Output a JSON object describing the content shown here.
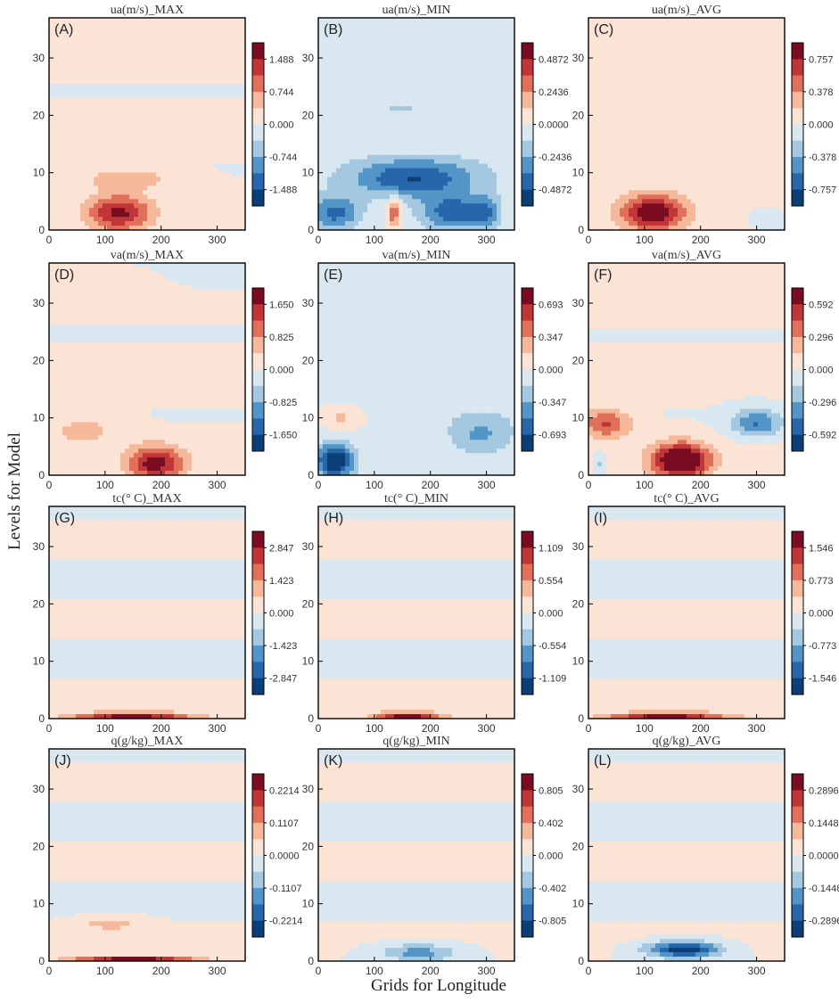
{
  "figure": {
    "ylabel": "Levels for Model",
    "xlabel": "Grids for Longitude"
  },
  "palette": {
    "levels": [
      "#0c3f75",
      "#2766aa",
      "#5495c7",
      "#a4c8e0",
      "#d9e7f1",
      "#fbe3d5",
      "#f6b89a",
      "#e1705a",
      "#c03638",
      "#7a0c22"
    ]
  },
  "chart_data": [
    {
      "type": "heatmap",
      "letter": "(A)",
      "title": "ua(m/s)_MAX",
      "xlim": [
        0,
        350
      ],
      "ylim": [
        0,
        37
      ],
      "xticks": [
        "0",
        "100",
        "200",
        "300"
      ],
      "yticks": [
        "0",
        "10",
        "20",
        "30"
      ],
      "colorbar": [
        "1.488",
        "0.744",
        "0.000",
        "-0.744",
        "-1.488"
      ],
      "vmax": 1.86,
      "bg": 0.05,
      "blobs": [
        {
          "x": 140,
          "y": 9,
          "sx": 80,
          "sy": 1.8,
          "a": 0.6
        },
        {
          "x": 125,
          "y": 3,
          "sx": 55,
          "sy": 3.2,
          "a": 1.5
        }
      ]
    },
    {
      "type": "heatmap",
      "letter": "(B)",
      "title": "ua(m/s)_MIN",
      "xlim": [
        0,
        350
      ],
      "ylim": [
        0,
        37
      ],
      "xticks": [
        "0",
        "100",
        "200",
        "300"
      ],
      "yticks": [
        "0",
        "10",
        "20",
        "30"
      ],
      "colorbar": [
        "0.4872",
        "0.2436",
        "0.0000",
        "-0.2436",
        "-0.4872"
      ],
      "vmax": 0.609,
      "bg": -0.03,
      "blobs": [
        {
          "x": 150,
          "y": 21,
          "sx": 40,
          "sy": 1.2,
          "a": -0.12
        },
        {
          "x": 170,
          "y": 9,
          "sx": 110,
          "sy": 3.5,
          "a": -0.45
        },
        {
          "x": 30,
          "y": 3,
          "sx": 45,
          "sy": 3,
          "a": -0.4
        },
        {
          "x": 240,
          "y": 3,
          "sx": 55,
          "sy": 3,
          "a": -0.45
        },
        {
          "x": 300,
          "y": 3,
          "sx": 25,
          "sy": 3,
          "a": -0.3
        },
        {
          "x": 135,
          "y": 3,
          "sx": 12,
          "sy": 2.5,
          "a": 0.38
        }
      ]
    },
    {
      "type": "heatmap",
      "letter": "(C)",
      "title": "ua(m/s)_AVG",
      "xlim": [
        0,
        350
      ],
      "ylim": [
        0,
        37
      ],
      "xticks": [
        "0",
        "100",
        "200",
        "300"
      ],
      "yticks": [
        "0",
        "10",
        "20",
        "30"
      ],
      "colorbar": [
        "0.757",
        "0.378",
        "0.000",
        "-0.378",
        "-0.757"
      ],
      "vmax": 0.946,
      "bg": 0.04,
      "blobs": [
        {
          "x": 115,
          "y": 3,
          "sx": 55,
          "sy": 3.2,
          "a": 0.9
        },
        {
          "x": 320,
          "y": 2,
          "sx": 30,
          "sy": 2,
          "a": -0.2
        }
      ]
    },
    {
      "type": "heatmap",
      "letter": "(D)",
      "title": "va(m/s)_MAX",
      "xlim": [
        0,
        350
      ],
      "ylim": [
        0,
        37
      ],
      "xticks": [
        "0",
        "100",
        "200",
        "300"
      ],
      "yticks": [
        "0",
        "10",
        "20",
        "30"
      ],
      "colorbar": [
        "1.650",
        "0.825",
        "0.000",
        "-0.825",
        "-1.650"
      ],
      "vmax": 2.06,
      "bg": 0.05,
      "blobs": [
        {
          "x": 190,
          "y": 2,
          "sx": 50,
          "sy": 3,
          "a": 1.8
        },
        {
          "x": 60,
          "y": 8,
          "sx": 70,
          "sy": 3,
          "a": 0.5
        },
        {
          "x": 300,
          "y": 34,
          "sx": 100,
          "sy": 3,
          "a": -0.15
        }
      ]
    },
    {
      "type": "heatmap",
      "letter": "(E)",
      "title": "va(m/s)_MIN",
      "xlim": [
        0,
        350
      ],
      "ylim": [
        0,
        37
      ],
      "xticks": [
        "0",
        "100",
        "200",
        "300"
      ],
      "yticks": [
        "0",
        "10",
        "20",
        "30"
      ],
      "colorbar": [
        "0.693",
        "0.347",
        "0.000",
        "-0.347",
        "-0.693"
      ],
      "vmax": 0.866,
      "bg": -0.03,
      "blobs": [
        {
          "x": 30,
          "y": 2.5,
          "sx": 35,
          "sy": 3,
          "a": -0.9
        },
        {
          "x": 40,
          "y": 10,
          "sx": 40,
          "sy": 2,
          "a": 0.25
        },
        {
          "x": 290,
          "y": 7,
          "sx": 60,
          "sy": 4,
          "a": -0.35
        }
      ]
    },
    {
      "type": "heatmap",
      "letter": "(F)",
      "title": "va(m/s)_AVG",
      "xlim": [
        0,
        350
      ],
      "ylim": [
        0,
        37
      ],
      "xticks": [
        "0",
        "100",
        "200",
        "300"
      ],
      "yticks": [
        "0",
        "10",
        "20",
        "30"
      ],
      "colorbar": [
        "0.592",
        "0.296",
        "0.000",
        "-0.296",
        "-0.592"
      ],
      "vmax": 0.74,
      "bg": 0.02,
      "blobs": [
        {
          "x": 165,
          "y": 2.5,
          "sx": 50,
          "sy": 3,
          "a": 0.9
        },
        {
          "x": 30,
          "y": 9,
          "sx": 45,
          "sy": 2.5,
          "a": 0.45
        },
        {
          "x": 300,
          "y": 9,
          "sx": 45,
          "sy": 2.5,
          "a": -0.45
        },
        {
          "x": 20,
          "y": 2,
          "sx": 12,
          "sy": 2,
          "a": -0.2
        }
      ]
    },
    {
      "type": "heatmap",
      "letter": "(G)",
      "title": "tc(° C)_MAX",
      "xlim": [
        0,
        350
      ],
      "ylim": [
        0,
        37
      ],
      "xticks": [
        "0",
        "100",
        "200",
        "300"
      ],
      "yticks": [
        "0",
        "10",
        "20",
        "30"
      ],
      "colorbar": [
        "2.847",
        "1.423",
        "0.000",
        "-1.423",
        "-2.847"
      ],
      "vmax": 3.56,
      "bg": 0.0,
      "blobs": [
        {
          "x": 150,
          "y": 0.3,
          "sx": 110,
          "sy": 0.8,
          "a": 3.2
        }
      ]
    },
    {
      "type": "heatmap",
      "letter": "(H)",
      "title": "tc(° C)_MIN",
      "xlim": [
        0,
        350
      ],
      "ylim": [
        0,
        37
      ],
      "xticks": [
        "0",
        "100",
        "200",
        "300"
      ],
      "yticks": [
        "0",
        "10",
        "20",
        "30"
      ],
      "colorbar": [
        "1.109",
        "0.554",
        "0.000",
        "-0.554",
        "-1.109"
      ],
      "vmax": 1.39,
      "bg": 0.0,
      "blobs": [
        {
          "x": 160,
          "y": 0.3,
          "sx": 60,
          "sy": 0.9,
          "a": 1.3
        }
      ]
    },
    {
      "type": "heatmap",
      "letter": "(I)",
      "title": "tc(° C)_AVG",
      "xlim": [
        0,
        350
      ],
      "ylim": [
        0,
        37
      ],
      "xticks": [
        "0",
        "100",
        "200",
        "300"
      ],
      "yticks": [
        "0",
        "10",
        "20",
        "30"
      ],
      "colorbar": [
        "1.546",
        "0.773",
        "0.000",
        "-0.773",
        "-1.546"
      ],
      "vmax": 1.93,
      "bg": 0.0,
      "blobs": [
        {
          "x": 140,
          "y": 0.3,
          "sx": 110,
          "sy": 0.8,
          "a": 1.7
        }
      ]
    },
    {
      "type": "heatmap",
      "letter": "(J)",
      "title": "q(g/kg)_MAX",
      "xlim": [
        0,
        350
      ],
      "ylim": [
        0,
        37
      ],
      "xticks": [
        "0",
        "100",
        "200",
        "300"
      ],
      "yticks": [
        "0",
        "10",
        "20",
        "30"
      ],
      "colorbar": [
        "0.2214",
        "0.1107",
        "0.0000",
        "-0.1107",
        "-0.2214"
      ],
      "vmax": 0.277,
      "bg": 0.0,
      "blobs": [
        {
          "x": 110,
          "y": 6.5,
          "sx": 55,
          "sy": 1.2,
          "a": 0.08
        },
        {
          "x": 150,
          "y": 0.3,
          "sx": 110,
          "sy": 0.6,
          "a": 0.26
        }
      ]
    },
    {
      "type": "heatmap",
      "letter": "(K)",
      "title": "q(g/kg)_MIN",
      "xlim": [
        0,
        350
      ],
      "ylim": [
        0,
        37
      ],
      "xticks": [
        "0",
        "100",
        "200",
        "300"
      ],
      "yticks": [
        "0",
        "10",
        "20",
        "30"
      ],
      "colorbar": [
        "0.805",
        "0.402",
        "0.000",
        "-0.402",
        "-0.805"
      ],
      "vmax": 1.0,
      "bg": 0.0,
      "blobs": [
        {
          "x": 180,
          "y": 1.5,
          "sx": 70,
          "sy": 1.5,
          "a": -0.5
        }
      ]
    },
    {
      "type": "heatmap",
      "letter": "(L)",
      "title": "q(g/kg)_AVG",
      "xlim": [
        0,
        350
      ],
      "ylim": [
        0,
        37
      ],
      "xticks": [
        "0",
        "100",
        "200",
        "300"
      ],
      "yticks": [
        "0",
        "10",
        "20",
        "30"
      ],
      "colorbar": [
        "0.2896",
        "0.1448",
        "0.0000",
        "-0.1448",
        "-0.2896"
      ],
      "vmax": 0.362,
      "bg": 0.0,
      "blobs": [
        {
          "x": 170,
          "y": 2,
          "sx": 65,
          "sy": 1.4,
          "a": -0.36
        }
      ]
    }
  ]
}
